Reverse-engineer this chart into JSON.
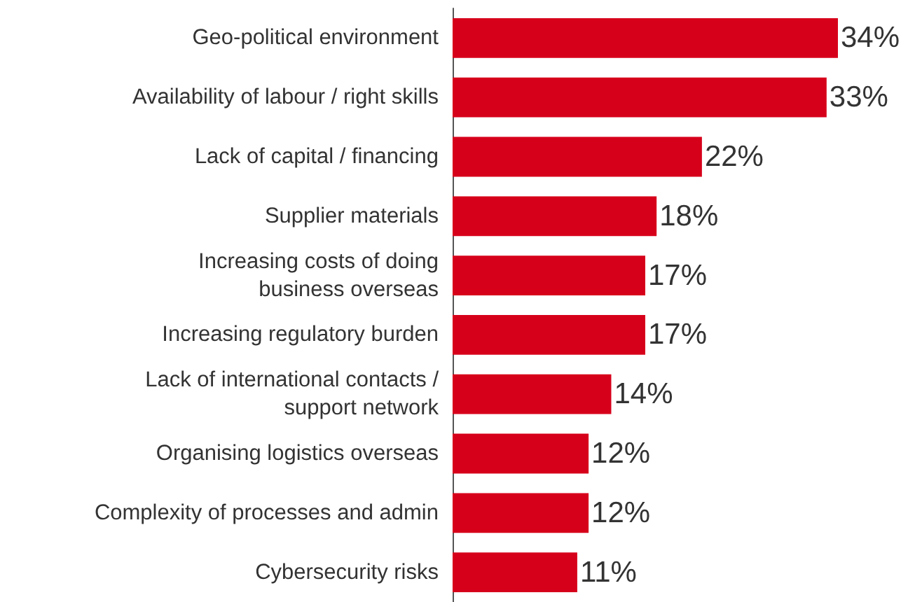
{
  "chart_data": {
    "type": "bar",
    "orientation": "horizontal",
    "categories": [
      "Geo-political environment",
      "Availability of labour / right skills",
      "Lack of capital / financing",
      "Supplier materials",
      "Increasing costs of doing\nbusiness overseas",
      "Increasing regulatory burden",
      "Lack of international contacts /\nsupport network",
      "Organising logistics overseas",
      "Complexity of processes and admin",
      "Cybersecurity risks"
    ],
    "values": [
      34,
      33,
      22,
      18,
      17,
      17,
      14,
      12,
      12,
      11
    ],
    "value_labels": [
      "34%",
      "33%",
      "22%",
      "18%",
      "17%",
      "17%",
      "14%",
      "12%",
      "12%",
      "11%"
    ],
    "color": "#d7001b"
  }
}
